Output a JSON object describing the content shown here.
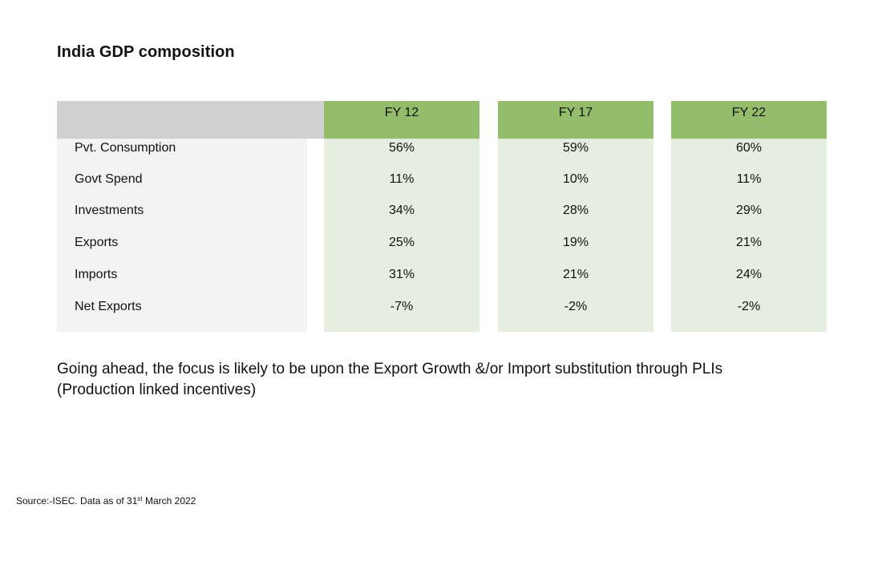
{
  "title": "India GDP composition",
  "table": {
    "columns": [
      "FY 12",
      "FY 17",
      "FY 22"
    ],
    "rows": [
      {
        "label": "Pvt. Consumption",
        "values": [
          "56%",
          "59%",
          "60%"
        ]
      },
      {
        "label": "Govt Spend",
        "values": [
          "11%",
          "10%",
          "11%"
        ]
      },
      {
        "label": "Investments",
        "values": [
          "34%",
          "28%",
          "29%"
        ]
      },
      {
        "label": "Exports",
        "values": [
          "25%",
          "19%",
          "21%"
        ]
      },
      {
        "label": "Imports",
        "values": [
          "31%",
          "21%",
          "24%"
        ]
      },
      {
        "label": "Net Exports",
        "values": [
          "-7%",
          "-2%",
          "-2%"
        ]
      }
    ]
  },
  "note": {
    "line1": "Going ahead, the focus is likely to be upon the Export Growth &/or Import substitution through PLIs",
    "line2": "(Production linked incentives)"
  },
  "source": {
    "prefix": "Source:-ISEC. Data as of  31",
    "superscript": "st",
    "suffix": " March 2022"
  },
  "colors": {
    "header_green": "#93bd6a",
    "body_green": "#e6efdf",
    "header_gray": "#d0d0d0",
    "label_gray": "#f2f3f2"
  }
}
